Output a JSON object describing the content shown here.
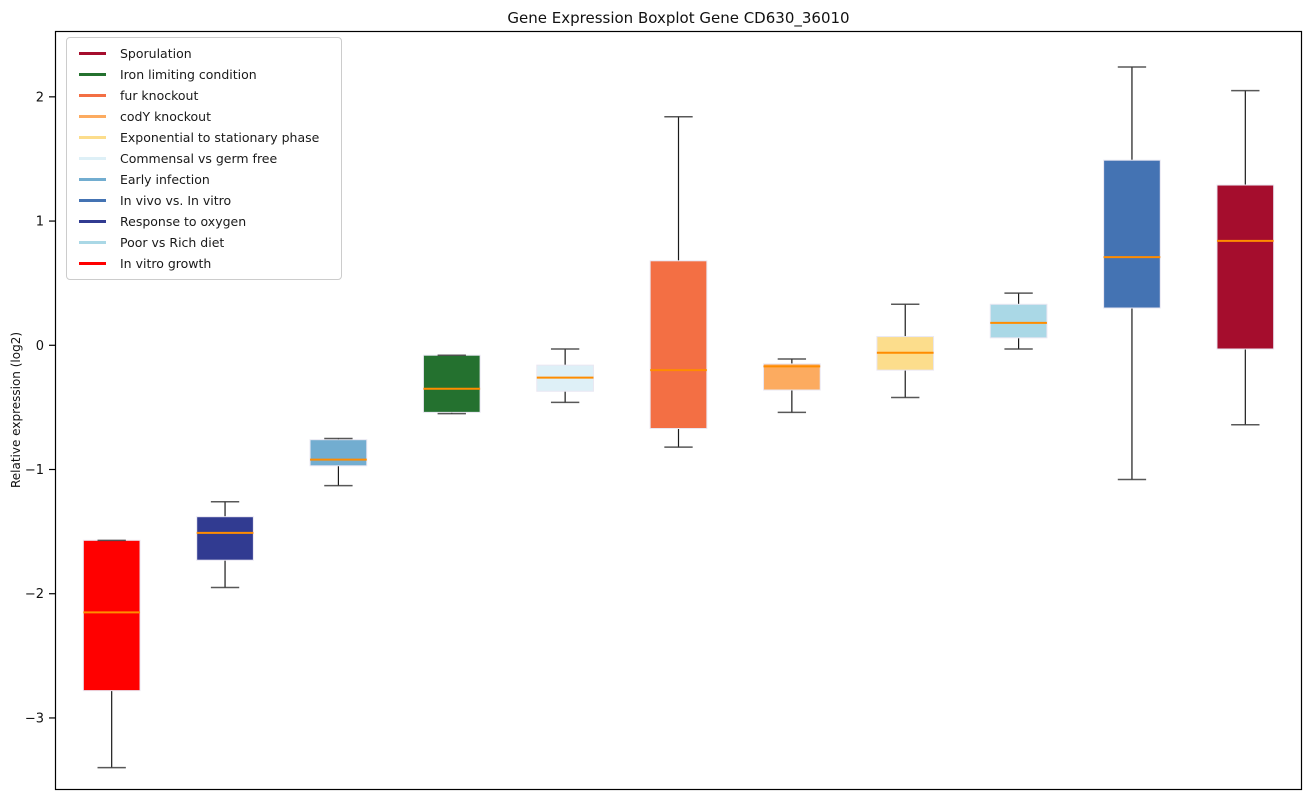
{
  "title": "Gene Expression Boxplot Gene CD630_36010",
  "ylabel": "Relative expression (log2)",
  "axes": {
    "ylim": [
      -3.58,
      2.53
    ],
    "yticks": [
      2,
      1,
      0,
      -1,
      -2,
      -3
    ],
    "xlim": [
      0.5,
      11.5
    ],
    "grid": false
  },
  "style": {
    "median_color": "#ff8c00",
    "whisker_color": "#1a1a1a",
    "cap_color": "#3c3c3c",
    "box_edge_color": "#e9e7f2",
    "axis_color": "#000000",
    "tick_label_color": "#111111"
  },
  "legend": {
    "position": "upper-left",
    "items": [
      {
        "label": "Sporulation",
        "color": "#a50d2d"
      },
      {
        "label": "Iron limiting condition",
        "color": "#24712f"
      },
      {
        "label": "fur knockout",
        "color": "#f36f44"
      },
      {
        "label": "codY knockout",
        "color": "#fcab60"
      },
      {
        "label": "Exponential to stationary phase",
        "color": "#fcdd8c"
      },
      {
        "label": "Commensal vs germ free",
        "color": "#def0f7"
      },
      {
        "label": "Early infection",
        "color": "#72add0"
      },
      {
        "label": "In vivo vs. In vitro",
        "color": "#4473b3"
      },
      {
        "label": "Response to oxygen",
        "color": "#313b91"
      },
      {
        "label": "Poor vs Rich diet",
        "color": "#aad8e6"
      },
      {
        "label": "In vitro growth",
        "color": "#ff0000"
      }
    ]
  },
  "chart_data": {
    "type": "boxplot",
    "title": "Gene Expression Boxplot Gene CD630_36010",
    "xlabel": "",
    "ylabel": "Relative expression (log2)",
    "ylim": [
      -3.58,
      2.53
    ],
    "series": [
      {
        "name": "In vitro growth",
        "color": "#ff0000",
        "position": 1,
        "whisker_low": -3.4,
        "q1": -2.78,
        "median": -2.15,
        "q3": -1.57,
        "whisker_high": -1.57
      },
      {
        "name": "Response to oxygen",
        "color": "#313b91",
        "position": 2,
        "whisker_low": -1.95,
        "q1": -1.73,
        "median": -1.51,
        "q3": -1.38,
        "whisker_high": -1.26
      },
      {
        "name": "Early infection",
        "color": "#72add0",
        "position": 3,
        "whisker_low": -1.13,
        "q1": -0.97,
        "median": -0.92,
        "q3": -0.76,
        "whisker_high": -0.75
      },
      {
        "name": "Iron limiting condition",
        "color": "#24712f",
        "position": 4,
        "whisker_low": -0.55,
        "q1": -0.54,
        "median": -0.35,
        "q3": -0.08,
        "whisker_high": -0.08
      },
      {
        "name": "Commensal vs germ free",
        "color": "#def0f7",
        "position": 5,
        "whisker_low": -0.46,
        "q1": -0.37,
        "median": -0.26,
        "q3": -0.16,
        "whisker_high": -0.03
      },
      {
        "name": "fur knockout",
        "color": "#f36f44",
        "position": 6,
        "whisker_low": -0.82,
        "q1": -0.67,
        "median": -0.2,
        "q3": 0.68,
        "whisker_high": 1.84
      },
      {
        "name": "codY knockout",
        "color": "#fcab60",
        "position": 7,
        "whisker_low": -0.54,
        "q1": -0.36,
        "median": -0.17,
        "q3": -0.15,
        "whisker_high": -0.11
      },
      {
        "name": "Exponential to stationary phase",
        "color": "#fcdd8c",
        "position": 8,
        "whisker_low": -0.42,
        "q1": -0.2,
        "median": -0.06,
        "q3": 0.07,
        "whisker_high": 0.33
      },
      {
        "name": "Poor vs Rich diet",
        "color": "#aad8e6",
        "position": 9,
        "whisker_low": -0.03,
        "q1": 0.06,
        "median": 0.18,
        "q3": 0.33,
        "whisker_high": 0.42
      },
      {
        "name": "In vivo vs. In vitro",
        "color": "#4473b3",
        "position": 10,
        "whisker_low": -1.08,
        "q1": 0.3,
        "median": 0.71,
        "q3": 1.49,
        "whisker_high": 2.24
      },
      {
        "name": "Sporulation",
        "color": "#a50d2d",
        "position": 11,
        "whisker_low": -0.64,
        "q1": -0.03,
        "median": 0.84,
        "q3": 1.29,
        "whisker_high": 2.05
      }
    ]
  }
}
